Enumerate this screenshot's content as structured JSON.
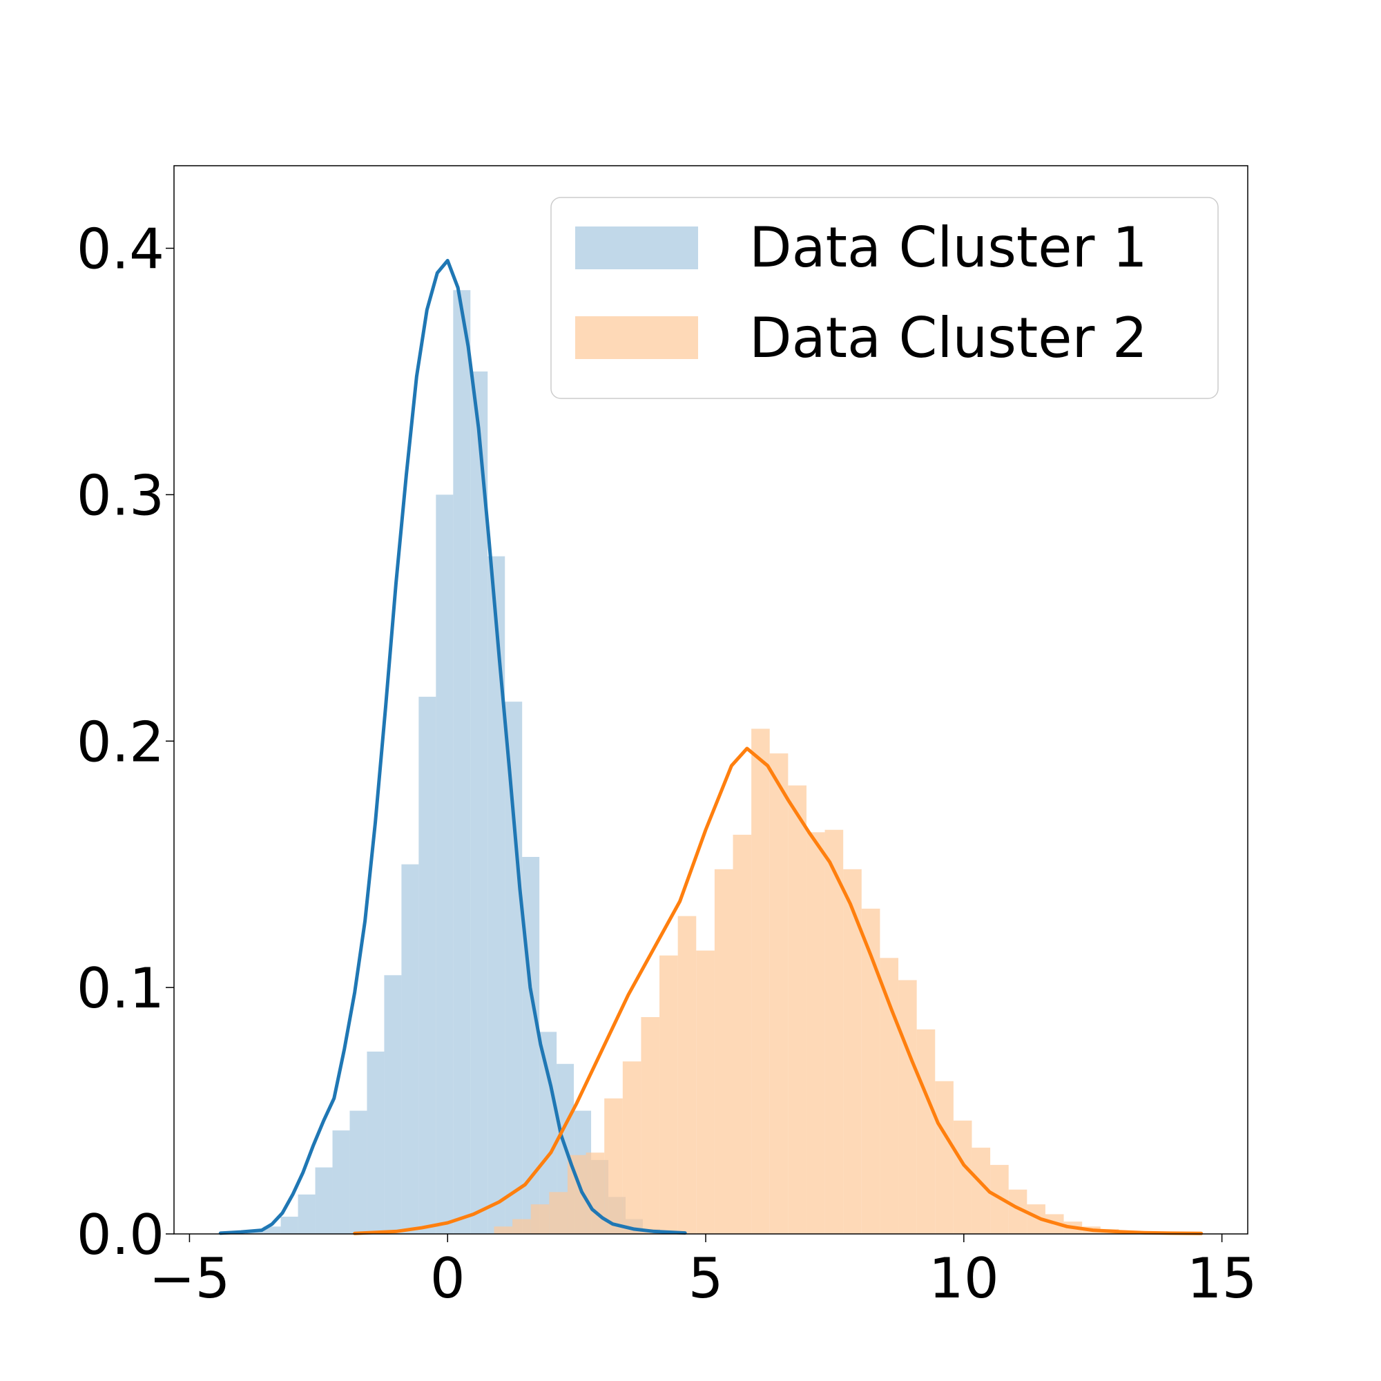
{
  "chart_data": {
    "type": "histogram",
    "title": "",
    "xlabel": "",
    "ylabel": "",
    "xlim": [
      -5.3,
      15.5
    ],
    "ylim": [
      0,
      0.4335
    ],
    "x_ticks": [
      -5,
      0,
      5,
      10,
      15
    ],
    "x_tick_labels": [
      "−5",
      "0",
      "5",
      "10",
      "15"
    ],
    "y_ticks": [
      0.0,
      0.1,
      0.2,
      0.3,
      0.4
    ],
    "y_tick_labels": [
      "0.0",
      "0.1",
      "0.2",
      "0.3",
      "0.4"
    ],
    "grid": false,
    "legend_position": "top-right",
    "series": [
      {
        "name": "Data Cluster 1",
        "hist_color": "#a6c8e0",
        "line_color": "#1f77b4",
        "bin_width": 0.334,
        "bins": [
          {
            "x": -3.9,
            "y": 0.001
          },
          {
            "x": -3.566,
            "y": 0.003
          },
          {
            "x": -3.232,
            "y": 0.007
          },
          {
            "x": -2.898,
            "y": 0.016
          },
          {
            "x": -2.564,
            "y": 0.027
          },
          {
            "x": -2.23,
            "y": 0.042
          },
          {
            "x": -1.896,
            "y": 0.05
          },
          {
            "x": -1.562,
            "y": 0.074
          },
          {
            "x": -1.228,
            "y": 0.105
          },
          {
            "x": -0.894,
            "y": 0.15
          },
          {
            "x": -0.56,
            "y": 0.218
          },
          {
            "x": -0.226,
            "y": 0.3
          },
          {
            "x": 0.108,
            "y": 0.383
          },
          {
            "x": 0.442,
            "y": 0.35
          },
          {
            "x": 0.776,
            "y": 0.275
          },
          {
            "x": 1.11,
            "y": 0.216
          },
          {
            "x": 1.444,
            "y": 0.153
          },
          {
            "x": 1.778,
            "y": 0.082
          },
          {
            "x": 2.112,
            "y": 0.069
          },
          {
            "x": 2.446,
            "y": 0.05
          },
          {
            "x": 2.78,
            "y": 0.03
          },
          {
            "x": 3.114,
            "y": 0.015
          },
          {
            "x": 3.448,
            "y": 0.006
          },
          {
            "x": 3.782,
            "y": 0.002
          }
        ],
        "kde": {
          "x": [
            -4.4,
            -4.0,
            -3.6,
            -3.4,
            -3.2,
            -3.0,
            -2.8,
            -2.6,
            -2.4,
            -2.2,
            -2.0,
            -1.8,
            -1.6,
            -1.4,
            -1.2,
            -1.0,
            -0.8,
            -0.6,
            -0.4,
            -0.2,
            0.0,
            0.2,
            0.4,
            0.6,
            0.8,
            1.0,
            1.2,
            1.4,
            1.6,
            1.8,
            2.0,
            2.2,
            2.4,
            2.6,
            2.8,
            3.0,
            3.2,
            3.6,
            4.0,
            4.4,
            4.6
          ],
          "y": [
            0.0003,
            0.0008,
            0.0015,
            0.004,
            0.0085,
            0.016,
            0.025,
            0.036,
            0.046,
            0.055,
            0.075,
            0.098,
            0.127,
            0.167,
            0.214,
            0.264,
            0.308,
            0.348,
            0.375,
            0.39,
            0.395,
            0.384,
            0.36,
            0.327,
            0.282,
            0.234,
            0.188,
            0.14,
            0.1,
            0.077,
            0.06,
            0.04,
            0.028,
            0.017,
            0.01,
            0.0065,
            0.004,
            0.002,
            0.001,
            0.0006,
            0.0004
          ]
        }
      },
      {
        "name": "Data Cluster 2",
        "hist_color": "#fdc999",
        "line_color": "#ff7f0e",
        "bin_width": 0.356,
        "bins": [
          {
            "x": 0.9,
            "y": 0.003
          },
          {
            "x": 1.256,
            "y": 0.006
          },
          {
            "x": 1.612,
            "y": 0.012
          },
          {
            "x": 1.968,
            "y": 0.017
          },
          {
            "x": 2.324,
            "y": 0.032
          },
          {
            "x": 2.68,
            "y": 0.033
          },
          {
            "x": 3.036,
            "y": 0.055
          },
          {
            "x": 3.392,
            "y": 0.07
          },
          {
            "x": 3.748,
            "y": 0.088
          },
          {
            "x": 4.104,
            "y": 0.113
          },
          {
            "x": 4.46,
            "y": 0.129
          },
          {
            "x": 4.816,
            "y": 0.115
          },
          {
            "x": 5.172,
            "y": 0.148
          },
          {
            "x": 5.528,
            "y": 0.162
          },
          {
            "x": 5.884,
            "y": 0.205
          },
          {
            "x": 6.24,
            "y": 0.195
          },
          {
            "x": 6.596,
            "y": 0.182
          },
          {
            "x": 6.952,
            "y": 0.163
          },
          {
            "x": 7.308,
            "y": 0.164
          },
          {
            "x": 7.664,
            "y": 0.148
          },
          {
            "x": 8.02,
            "y": 0.132
          },
          {
            "x": 8.376,
            "y": 0.112
          },
          {
            "x": 8.732,
            "y": 0.103
          },
          {
            "x": 9.088,
            "y": 0.083
          },
          {
            "x": 9.444,
            "y": 0.062
          },
          {
            "x": 9.8,
            "y": 0.046
          },
          {
            "x": 10.156,
            "y": 0.035
          },
          {
            "x": 10.512,
            "y": 0.028
          },
          {
            "x": 10.868,
            "y": 0.018
          },
          {
            "x": 11.224,
            "y": 0.012
          },
          {
            "x": 11.58,
            "y": 0.008
          },
          {
            "x": 11.936,
            "y": 0.005
          },
          {
            "x": 12.292,
            "y": 0.003
          },
          {
            "x": 12.648,
            "y": 0.002
          },
          {
            "x": 13.004,
            "y": 0.0012
          },
          {
            "x": 13.36,
            "y": 0.0008
          }
        ],
        "kde": {
          "x": [
            -1.8,
            -1.0,
            -0.5,
            0.0,
            0.5,
            1.0,
            1.5,
            2.0,
            2.5,
            3.0,
            3.5,
            4.0,
            4.5,
            5.0,
            5.5,
            5.8,
            6.2,
            6.6,
            7.0,
            7.4,
            7.8,
            8.2,
            8.6,
            9.0,
            9.5,
            10.0,
            10.5,
            11.0,
            11.5,
            12.0,
            12.5,
            13.0,
            13.5,
            14.0,
            14.6
          ],
          "y": [
            0.0002,
            0.001,
            0.0025,
            0.0045,
            0.008,
            0.013,
            0.02,
            0.033,
            0.053,
            0.075,
            0.097,
            0.116,
            0.135,
            0.164,
            0.19,
            0.197,
            0.19,
            0.176,
            0.163,
            0.151,
            0.134,
            0.113,
            0.091,
            0.07,
            0.045,
            0.028,
            0.017,
            0.011,
            0.006,
            0.003,
            0.0015,
            0.0009,
            0.0005,
            0.0003,
            0.0002
          ]
        }
      }
    ]
  }
}
